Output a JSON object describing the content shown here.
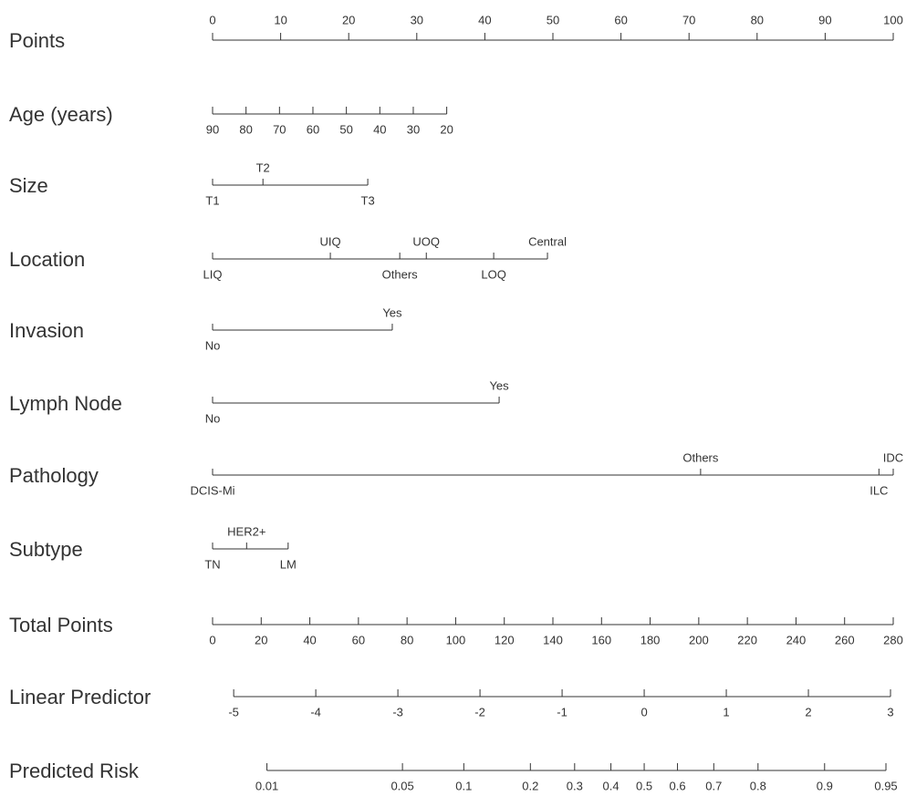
{
  "chart_data": {
    "type": "nomogram",
    "rows": [
      {
        "name": "Points",
        "ticks": [
          0,
          10,
          20,
          30,
          40,
          50,
          60,
          70,
          80,
          90,
          100
        ],
        "ends": [
          0,
          100
        ],
        "labels": "above"
      },
      {
        "name": "Age (years)",
        "ticks": [
          90,
          80,
          70,
          60,
          50,
          40,
          30,
          20
        ],
        "ends": [
          0,
          34.4
        ],
        "labels": "below"
      },
      {
        "name": "Size",
        "levels": [
          {
            "label": "T1",
            "points": 0,
            "side": "below"
          },
          {
            "label": "T2",
            "points": 7.4,
            "side": "above"
          },
          {
            "label": "T3",
            "points": 22.8,
            "side": "below"
          }
        ]
      },
      {
        "name": "Location",
        "levels": [
          {
            "label": "LIQ",
            "points": 0,
            "side": "below"
          },
          {
            "label": "UIQ",
            "points": 17.3,
            "side": "above"
          },
          {
            "label": "Others",
            "points": 27.5,
            "side": "below"
          },
          {
            "label": "UOQ",
            "points": 31.4,
            "side": "above"
          },
          {
            "label": "LOQ",
            "points": 41.3,
            "side": "below"
          },
          {
            "label": "Central",
            "points": 49.2,
            "side": "above"
          }
        ]
      },
      {
        "name": "Invasion",
        "levels": [
          {
            "label": "No",
            "points": 0,
            "side": "below"
          },
          {
            "label": "Yes",
            "points": 26.4,
            "side": "above"
          }
        ]
      },
      {
        "name": "Lymph Node",
        "levels": [
          {
            "label": "No",
            "points": 0,
            "side": "below"
          },
          {
            "label": "Yes",
            "points": 42.1,
            "side": "above"
          }
        ]
      },
      {
        "name": "Pathology",
        "levels": [
          {
            "label": "DCIS-Mi",
            "points": 0,
            "side": "below"
          },
          {
            "label": "Others",
            "points": 71.7,
            "side": "above"
          },
          {
            "label": "ILC",
            "points": 97.9,
            "side": "below"
          },
          {
            "label": "IDC",
            "points": 100,
            "side": "above"
          }
        ]
      },
      {
        "name": "Subtype",
        "levels": [
          {
            "label": "TN",
            "points": 0,
            "side": "below"
          },
          {
            "label": "HER2+",
            "points": 5.0,
            "side": "above"
          },
          {
            "label": "LM",
            "points": 11.1,
            "side": "below"
          }
        ]
      },
      {
        "name": "Total Points",
        "ticks": [
          0,
          20,
          40,
          60,
          80,
          100,
          120,
          140,
          160,
          180,
          200,
          220,
          240,
          260,
          280
        ],
        "ends": [
          0,
          100
        ],
        "labels": "below"
      },
      {
        "name": "Linear Predictor",
        "ticks": [
          -5,
          -4,
          -3,
          -2,
          -1,
          0,
          1,
          2,
          3
        ],
        "ends": [
          3.1,
          99.6
        ],
        "labels": "below"
      },
      {
        "name": "Predicted Risk",
        "ticks": [
          0.01,
          0.05,
          0.1,
          0.2,
          0.3,
          0.4,
          0.5,
          0.6,
          0.7,
          0.8,
          0.9,
          0.95
        ],
        "scale": "logit",
        "labels": "below"
      }
    ]
  }
}
